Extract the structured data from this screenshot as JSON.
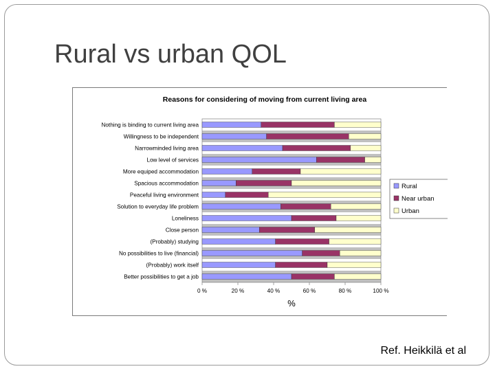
{
  "slide": {
    "title": "Rural vs urban QOL",
    "reference": "Ref. Heikkilä et al"
  },
  "chart_data": {
    "type": "bar",
    "orientation": "horizontal",
    "stacked": "percent",
    "title": "Reasons for considering of moving from current living area",
    "xlabel": "%",
    "ylabel": "",
    "xlim": [
      0,
      100
    ],
    "x_ticks": [
      "0 %",
      "20 %",
      "40 %",
      "60 %",
      "80 %",
      "100 %"
    ],
    "grid": "horizontal bands",
    "legend_position": "right",
    "categories": [
      "Nothing is binding to current living area",
      "Willingness to be independent",
      "Narrowminded living area",
      "Low level of services",
      "More equiped accommodation",
      "Spacious accommodation",
      "Peaceful living environment",
      "Solution to everyday life problem",
      "Loneliness",
      "Close person",
      "(Probably) studying",
      "No possibilities to live (financial)",
      "(Probably) work itself",
      "Better possibilities to get a job"
    ],
    "series": [
      {
        "name": "Rural",
        "color": "#9999ff",
        "values": [
          33,
          36,
          45,
          64,
          28,
          19,
          13,
          44,
          50,
          32,
          41,
          56,
          41,
          50
        ]
      },
      {
        "name": "Near urban",
        "color": "#993366",
        "values": [
          41,
          46,
          38,
          27,
          27,
          31,
          24,
          28,
          25,
          31,
          30,
          21,
          29,
          24
        ]
      },
      {
        "name": "Urban",
        "color": "#ffffcc",
        "values": [
          26,
          18,
          17,
          9,
          45,
          50,
          63,
          28,
          25,
          37,
          29,
          23,
          30,
          26
        ]
      }
    ]
  }
}
